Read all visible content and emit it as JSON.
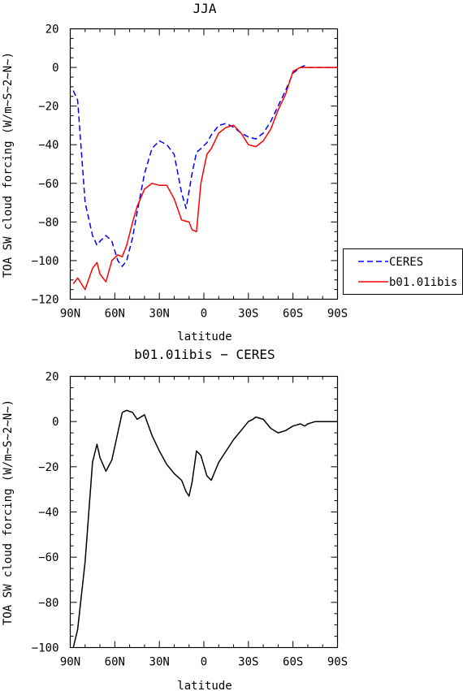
{
  "chart_data": [
    {
      "type": "line",
      "title": "JJA",
      "xlabel": "latitude",
      "ylabel": "TOA SW cloud forcing (W/m~S~2~N~)",
      "x_ticks": [
        "90N",
        "60N",
        "30N",
        "0",
        "30S",
        "60S",
        "90S"
      ],
      "y_ticks": [
        "20",
        "0",
        "−20",
        "−40",
        "−60",
        "−80",
        "−100",
        "−120"
      ],
      "ylim": [
        -120,
        20
      ],
      "xlim": [
        90,
        -90
      ],
      "legend_position": "right",
      "series": [
        {
          "name": "CERES",
          "color": "#0000ff",
          "dash": "dashed",
          "x": [
            88,
            85,
            80,
            75,
            72,
            70,
            66,
            62,
            58,
            55,
            52,
            48,
            45,
            40,
            35,
            30,
            25,
            20,
            15,
            12,
            8,
            5,
            2,
            -2,
            -5,
            -10,
            -15,
            -20,
            -25,
            -30,
            -35,
            -40,
            -45,
            -50,
            -55,
            -60,
            -65,
            -68,
            -70,
            -75,
            -80,
            -85,
            -90
          ],
          "y": [
            -12,
            -17,
            -70,
            -87,
            -92,
            -90,
            -87,
            -90,
            -100,
            -103,
            -100,
            -88,
            -75,
            -55,
            -42,
            -38,
            -40,
            -45,
            -65,
            -73,
            -55,
            -44,
            -42,
            -39,
            -35,
            -30,
            -29,
            -31,
            -34,
            -36,
            -37,
            -34,
            -28,
            -20,
            -12,
            -3,
            0,
            1,
            0,
            0,
            0,
            0,
            0
          ]
        },
        {
          "name": "b01.01ibis",
          "color": "#ff0000",
          "dash": "solid",
          "x": [
            88,
            85,
            80,
            75,
            72,
            70,
            66,
            62,
            58,
            55,
            52,
            48,
            45,
            40,
            35,
            30,
            25,
            20,
            15,
            10,
            8,
            5,
            2,
            -2,
            -5,
            -10,
            -15,
            -20,
            -25,
            -30,
            -35,
            -40,
            -45,
            -50,
            -55,
            -60,
            -65,
            -68,
            -70,
            -75,
            -80,
            -85,
            -90
          ],
          "y": [
            -112,
            -109,
            -115,
            -104,
            -101,
            -107,
            -111,
            -100,
            -97,
            -98,
            -92,
            -80,
            -72,
            -63,
            -60,
            -61,
            -61,
            -68,
            -79,
            -80,
            -84,
            -85,
            -60,
            -45,
            -42,
            -34,
            -31,
            -30,
            -34,
            -40,
            -41,
            -38,
            -32,
            -22,
            -14,
            -2,
            0,
            0,
            0,
            0,
            0,
            0,
            0
          ]
        }
      ]
    },
    {
      "type": "line",
      "title": "b01.01ibis − CERES",
      "xlabel": "latitude",
      "ylabel": "TOA SW cloud forcing (W/m~S~2~N~)",
      "x_ticks": [
        "90N",
        "60N",
        "30N",
        "0",
        "30S",
        "60S",
        "90S"
      ],
      "y_ticks": [
        "20",
        "0",
        "−20",
        "−40",
        "−60",
        "−80",
        "−100"
      ],
      "ylim": [
        -100,
        20
      ],
      "xlim": [
        90,
        -90
      ],
      "series": [
        {
          "color": "#000000",
          "dash": "solid",
          "x": [
            88,
            85,
            80,
            75,
            72,
            70,
            66,
            62,
            58,
            55,
            52,
            48,
            45,
            40,
            35,
            30,
            25,
            20,
            15,
            12,
            10,
            8,
            5,
            2,
            -2,
            -5,
            -10,
            -15,
            -20,
            -25,
            -30,
            -33,
            -35,
            -40,
            -45,
            -50,
            -55,
            -60,
            -65,
            -68,
            -70,
            -75,
            -80,
            -85,
            -90
          ],
          "y": [
            -100,
            -92,
            -62,
            -18,
            -10,
            -16,
            -22,
            -17,
            -5,
            4,
            5,
            4,
            1,
            3,
            -6,
            -13,
            -19,
            -23,
            -26,
            -31,
            -33,
            -27,
            -13,
            -15,
            -24,
            -26,
            -18,
            -13,
            -8,
            -4,
            0,
            1,
            2,
            1,
            -3,
            -5,
            -4,
            -2,
            -1,
            -2,
            -1,
            0,
            0,
            0,
            0
          ]
        }
      ]
    }
  ]
}
